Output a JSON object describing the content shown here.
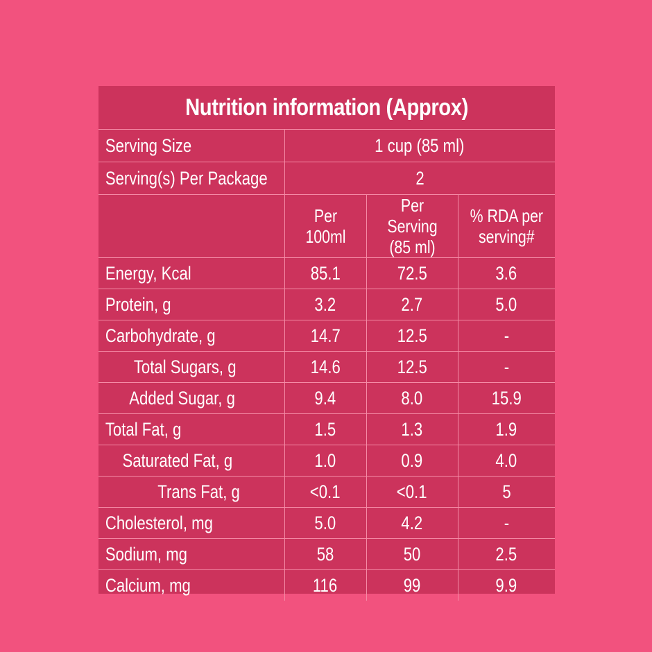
{
  "title": "Nutrition information (Approx)",
  "serving_size": {
    "label": "Serving Size",
    "value": "1 cup (85 ml)"
  },
  "servings_per_package": {
    "label": "Serving(s) Per Package",
    "value": "2"
  },
  "columns": {
    "per_100": "Per 100ml",
    "per_serving_line1": "Per Serving",
    "per_serving_line2": "(85 ml)",
    "rda_line1": "% RDA per",
    "rda_line2": "serving#"
  },
  "rows": [
    {
      "label": "Energy, Kcal",
      "per100": "85.1",
      "serving": "72.5",
      "rda": "3.6"
    },
    {
      "label": "Protein, g",
      "per100": "3.2",
      "serving": "2.7",
      "rda": "5.0"
    },
    {
      "label": "Carbohydrate, g",
      "per100": "14.7",
      "serving": "12.5",
      "rda": "-"
    },
    {
      "label": "Total Sugars, g",
      "per100": "14.6",
      "serving": "12.5",
      "rda": "-"
    },
    {
      "label": "Added Sugar, g",
      "per100": "9.4",
      "serving": "8.0",
      "rda": "15.9"
    },
    {
      "label": "Total Fat, g",
      "per100": "1.5",
      "serving": "1.3",
      "rda": "1.9"
    },
    {
      "label": "Saturated Fat, g",
      "per100": "1.0",
      "serving": "0.9",
      "rda": "4.0"
    },
    {
      "label": "Trans Fat, g",
      "per100": "<0.1",
      "serving": "<0.1",
      "rda": "5"
    },
    {
      "label": "Cholesterol, mg",
      "per100": "5.0",
      "serving": "4.2",
      "rda": "-"
    },
    {
      "label": "Sodium, mg",
      "per100": "58",
      "serving": "50",
      "rda": "2.5"
    },
    {
      "label": "Calcium, mg",
      "per100": "116",
      "serving": "99",
      "rda": "9.9"
    }
  ],
  "colors": {
    "background": "#F2527E",
    "panel": "#CC335C",
    "grid": "#F58BA6",
    "text": "#FFFFFF"
  }
}
